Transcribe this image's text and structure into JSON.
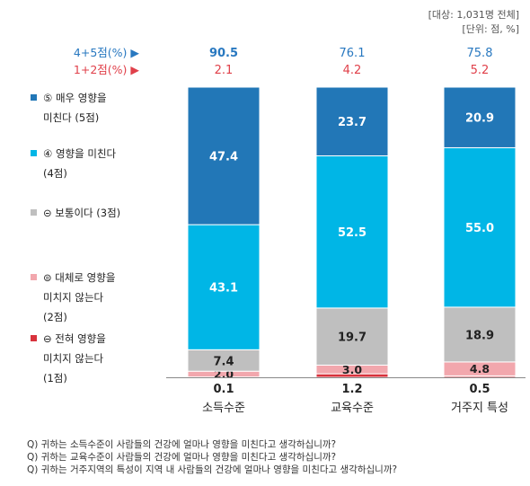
{
  "notes": {
    "sample": "[대상: 1,031명 전체]",
    "unit": "[단위: 점, %]"
  },
  "summary_labels": {
    "top2": "4+5점(%) ▶",
    "bottom2": "1+2점(%) ▶"
  },
  "colors": {
    "s5": "#2277b7",
    "s4": "#00b6e6",
    "s3": "#bfbfbf",
    "s2": "#f2a7ad",
    "s1": "#d8323c",
    "top2_text": "#2878c0",
    "bottom2_text": "#e0404a"
  },
  "chart_data": {
    "type": "bar",
    "stacked": true,
    "orientation": "vertical",
    "ylim": [
      0,
      100
    ],
    "categories": [
      "소득수준",
      "교육수준",
      "거주지 특성"
    ],
    "series": [
      {
        "key": "s1",
        "name": "⊖ 전혀 영향을 미치지 않는다 (1점)",
        "legend_lines": [
          "⊖ 전혀 영향을",
          "미치지 않는다",
          "(1점)"
        ],
        "values": [
          0.1,
          1.2,
          0.5
        ]
      },
      {
        "key": "s2",
        "name": "⊜ 대체로 영향을 미치지 않는다 (2점)",
        "legend_lines": [
          "⊜ 대체로 영향을",
          "미치지 않는다",
          "(2점)"
        ],
        "values": [
          2.0,
          3.0,
          4.8
        ]
      },
      {
        "key": "s3",
        "name": "⊝ 보통이다 (3점)",
        "legend_lines": [
          "⊝ 보통이다 (3점)"
        ],
        "values": [
          7.4,
          19.7,
          18.9
        ]
      },
      {
        "key": "s4",
        "name": "④ 영향을 미친다 (4점)",
        "legend_lines": [
          "④ 영향을 미친다",
          "(4점)"
        ],
        "values": [
          43.1,
          52.5,
          55.0
        ]
      },
      {
        "key": "s5",
        "name": "⑤ 매우 영향을 미친다 (5점)",
        "legend_lines": [
          "⑤ 매우 영향을",
          "미친다 (5점)"
        ],
        "values": [
          47.4,
          23.7,
          20.9
        ]
      }
    ],
    "labels": {
      "s1": [
        "0.1",
        "1.2",
        "0.5"
      ],
      "s2": [
        "2.0",
        "3.0",
        "4.8"
      ],
      "s3": [
        "7.4",
        "19.7",
        "18.9"
      ],
      "s4": [
        "43.1",
        "52.5",
        "55.0"
      ],
      "s5": [
        "47.4",
        "23.7",
        "20.9"
      ]
    },
    "top2": [
      "90.5",
      "76.1",
      "75.8"
    ],
    "bottom2": [
      "2.1",
      "4.2",
      "5.2"
    ]
  },
  "questions": [
    "Q) 귀하는 소득수준이 사람들의 건강에 얼마나 영향을 미친다고 생각하십니까?",
    "Q) 귀하는 교육수준이 사람들의 건강에 얼마나 영향을 미친다고 생각하십니까?",
    "Q) 귀하는 거주지역의 특성이 지역 내 사람들의 건강에 얼마나 영향을 미친다고 생각하십니까?"
  ]
}
